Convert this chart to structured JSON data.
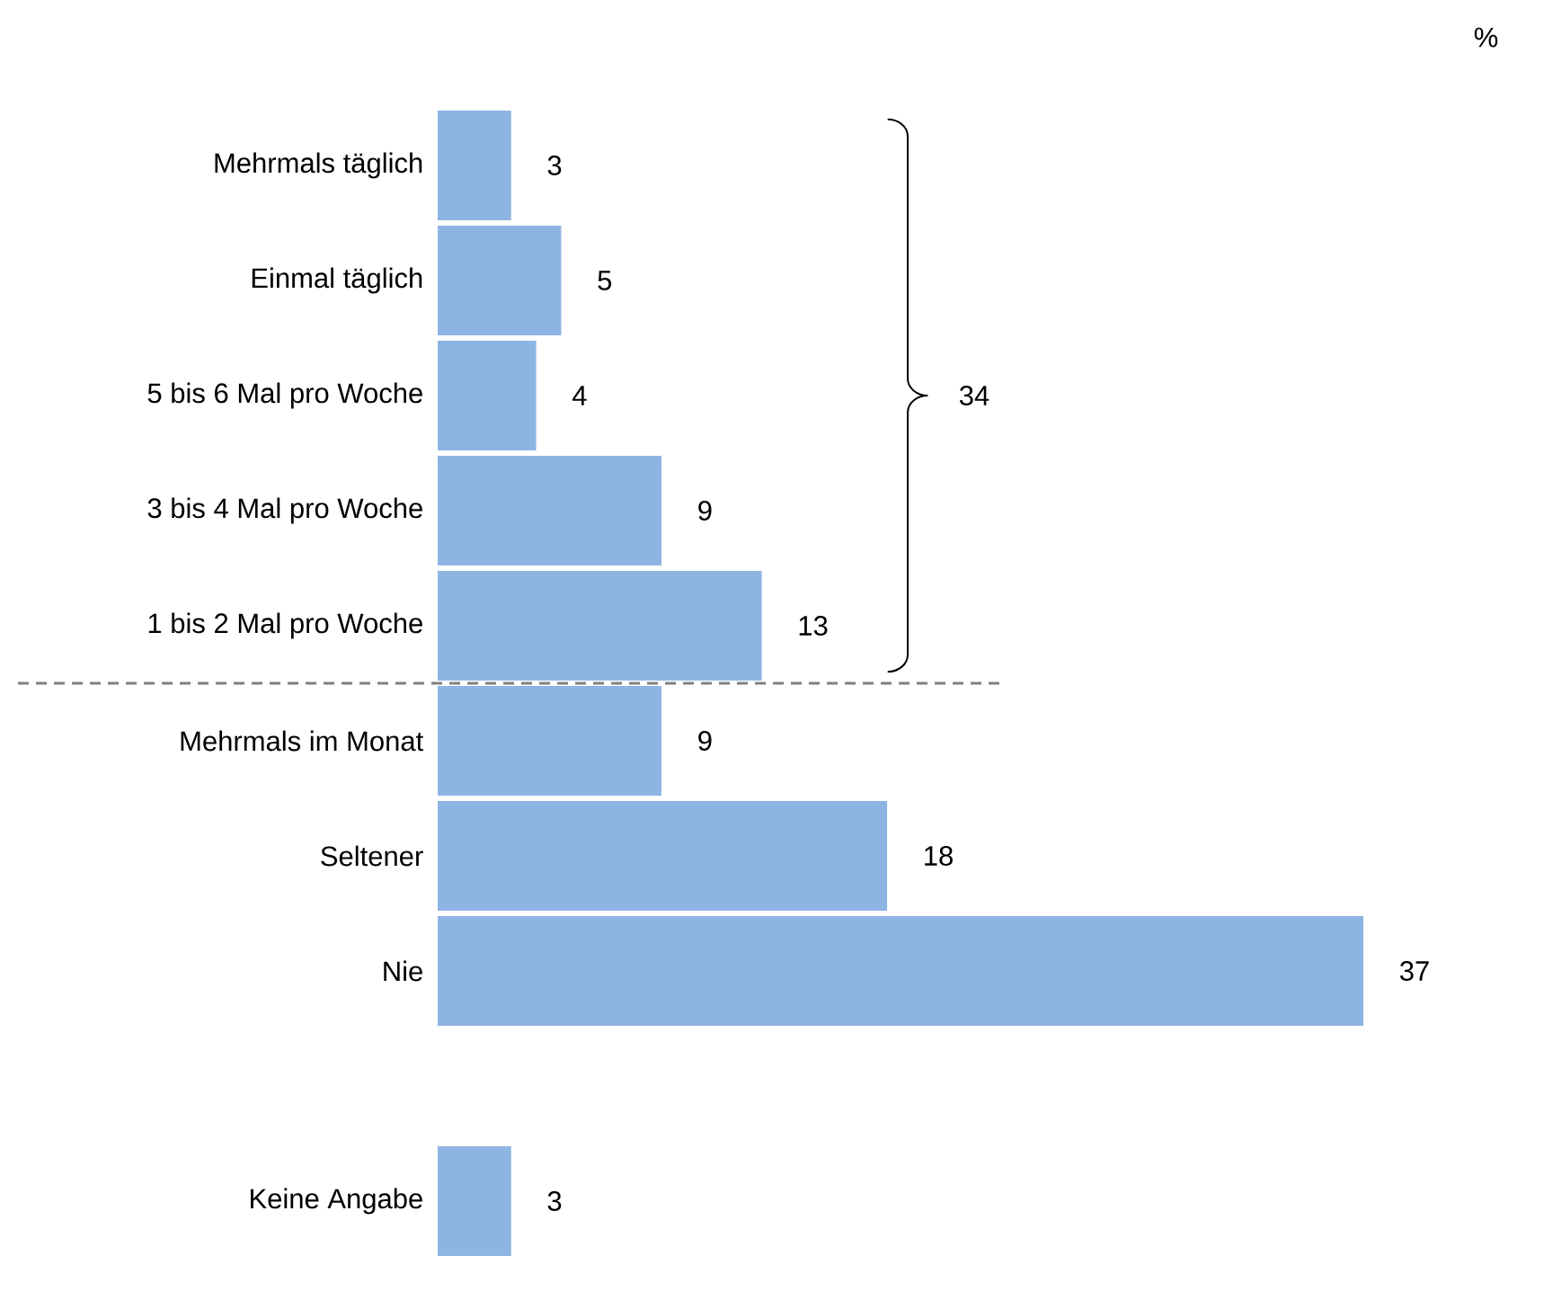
{
  "chart_data": {
    "type": "bar",
    "orientation": "horizontal",
    "categories": [
      "Mehrmals täglich",
      "Einmal täglich",
      "5 bis 6 Mal pro Woche",
      "3 bis 4 Mal pro Woche",
      "1 bis 2 Mal pro Woche",
      "Mehrmals im Monat",
      "Seltener",
      "Nie",
      null,
      "Keine Angabe"
    ],
    "values": [
      3,
      5,
      4,
      9,
      13,
      9,
      18,
      37,
      null,
      3
    ],
    "color": "#8eb4e3",
    "xlim": [
      0,
      37
    ],
    "data_labels": true,
    "annotations": [
      "34",
      "%"
    ]
  }
}
